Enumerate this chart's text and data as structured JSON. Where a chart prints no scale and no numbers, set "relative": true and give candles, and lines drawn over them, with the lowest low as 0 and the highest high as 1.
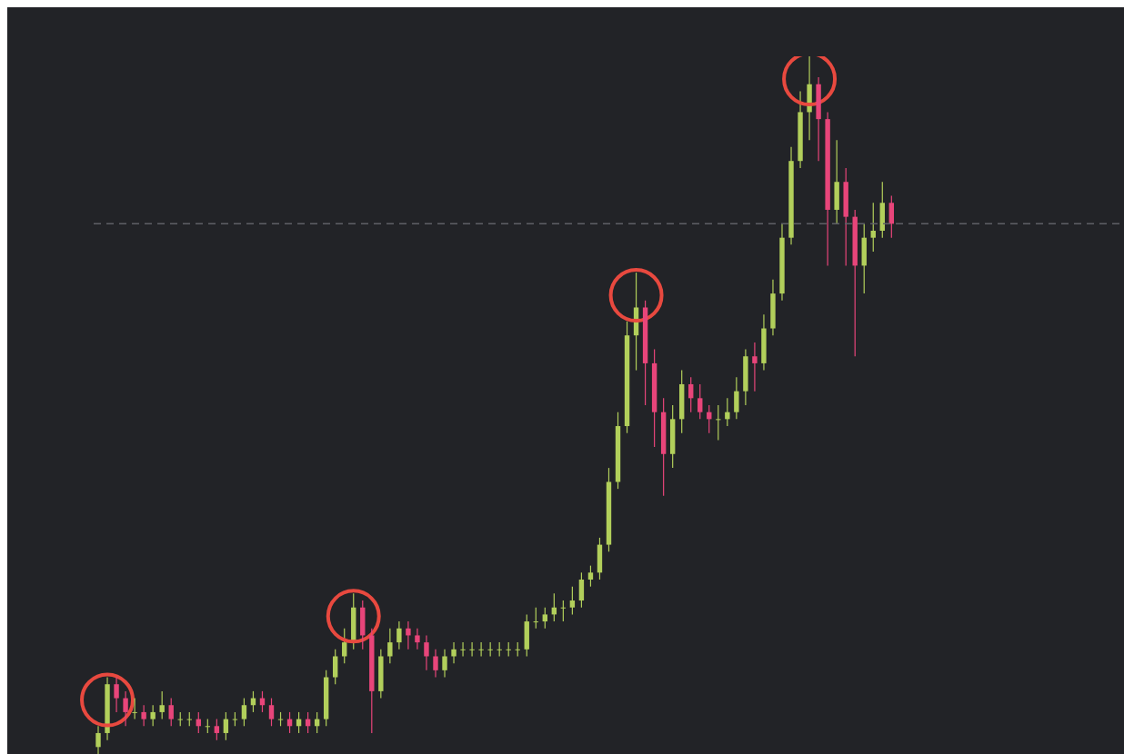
{
  "chart_data": {
    "type": "candlestick",
    "relative": true,
    "categories": [
      null,
      null,
      null,
      null,
      null,
      null,
      null,
      null,
      null,
      null,
      null,
      null,
      null,
      null,
      null,
      null,
      null,
      null,
      null,
      null,
      null,
      null,
      null,
      null,
      null,
      null,
      null,
      null,
      null,
      null,
      null,
      null,
      null,
      null,
      null,
      null,
      null,
      null,
      null,
      null,
      null,
      null,
      null,
      null,
      null,
      null,
      null,
      null,
      null,
      null,
      null,
      null,
      null,
      null,
      null,
      null,
      null,
      null,
      null,
      null,
      null,
      null,
      null,
      null,
      null,
      null,
      null,
      null,
      null,
      null,
      null,
      null,
      null,
      null,
      null,
      null,
      null,
      null,
      null,
      null,
      null,
      null,
      null,
      null,
      null,
      null,
      null,
      null,
      null,
      null,
      null,
      null,
      null,
      null,
      null,
      null,
      null,
      null,
      null,
      null,
      null,
      null,
      null,
      null,
      null,
      null,
      null,
      null,
      null,
      null,
      null,
      null,
      null
    ],
    "colors": [
      "#b2cf5b",
      "#b2cf5b",
      "#e8457a",
      "#e8457a",
      "#b2cf5b",
      "#e8457a",
      "#b2cf5b",
      "#b2cf5b",
      "#e8457a",
      "#b2cf5b",
      "#b2cf5b",
      "#e8457a",
      "#b2cf5b",
      "#e8457a",
      "#b2cf5b",
      "#b2cf5b",
      "#b2cf5b",
      "#b2cf5b",
      "#e8457a",
      "#e8457a",
      "#b2cf5b",
      "#e8457a",
      "#b2cf5b",
      "#e8457a",
      "#b2cf5b",
      "#b2cf5b",
      "#b2cf5b",
      "#b2cf5b",
      "#b2cf5b",
      "#e8457a",
      "#e8457a",
      "#b2cf5b",
      "#b2cf5b",
      "#b2cf5b",
      "#e8457a",
      "#e8457a",
      "#e8457a",
      "#e8457a",
      "#b2cf5b",
      "#b2cf5b",
      "#b2cf5b",
      "#b2cf5b",
      "#b2cf5b",
      "#b2cf5b",
      "#b2cf5b",
      "#b2cf5b",
      "#b2cf5b",
      "#b2cf5b",
      "#b2cf5b",
      "#b2cf5b",
      "#b2cf5b",
      "#b2cf5b",
      "#b2cf5b",
      "#b2cf5b",
      "#b2cf5b",
      "#b2cf5b",
      "#b2cf5b",
      "#b2cf5b",
      "#b2cf5b",
      "#b2cf5b",
      "#e8457a",
      "#e8457a",
      "#e8457a",
      "#b2cf5b",
      "#b2cf5b",
      "#e8457a",
      "#e8457a",
      "#e8457a",
      "#b2cf5b",
      "#b2cf5b",
      "#b2cf5b",
      "#b2cf5b",
      "#e8457a",
      "#b2cf5b",
      "#b2cf5b",
      "#b2cf5b",
      "#b2cf5b",
      "#b2cf5b",
      "#b2cf5b",
      "#e8457a",
      "#e8457a",
      "#b2cf5b",
      "#e8457a",
      "#e8457a",
      "#b2cf5b",
      "#b2cf5b",
      "#b2cf5b",
      "#e8457a",
      null,
      null,
      null,
      null,
      null,
      null,
      null,
      null,
      null,
      null,
      null,
      null,
      null,
      null,
      null,
      null,
      null,
      null,
      null,
      null,
      null,
      null,
      null,
      null,
      null
    ],
    "ohlc": [
      [
        0.01,
        0.04,
        0,
        0.03
      ],
      [
        0.03,
        0.11,
        0.02,
        0.1
      ],
      [
        0.1,
        0.11,
        0.06,
        0.08
      ],
      [
        0.08,
        0.09,
        0.04,
        0.06
      ],
      [
        0.06,
        0.08,
        0.05,
        0.06
      ],
      [
        0.06,
        0.07,
        0.04,
        0.05
      ],
      [
        0.05,
        0.07,
        0.04,
        0.06
      ],
      [
        0.06,
        0.09,
        0.05,
        0.07
      ],
      [
        0.07,
        0.08,
        0.04,
        0.05
      ],
      [
        0.05,
        0.06,
        0.04,
        0.05
      ],
      [
        0.05,
        0.06,
        0.04,
        0.05
      ],
      [
        0.05,
        0.06,
        0.03,
        0.04
      ],
      [
        0.04,
        0.05,
        0.03,
        0.04
      ],
      [
        0.04,
        0.05,
        0.02,
        0.03
      ],
      [
        0.03,
        0.06,
        0.02,
        0.05
      ],
      [
        0.05,
        0.06,
        0.04,
        0.05
      ],
      [
        0.05,
        0.08,
        0.04,
        0.07
      ],
      [
        0.07,
        0.09,
        0.06,
        0.08
      ],
      [
        0.08,
        0.09,
        0.06,
        0.07
      ],
      [
        0.07,
        0.08,
        0.04,
        0.05
      ],
      [
        0.05,
        0.06,
        0.04,
        0.05
      ],
      [
        0.05,
        0.06,
        0.03,
        0.04
      ],
      [
        0.04,
        0.06,
        0.03,
        0.05
      ],
      [
        0.05,
        0.06,
        0.03,
        0.04
      ],
      [
        0.04,
        0.06,
        0.03,
        0.05
      ],
      [
        0.05,
        0.12,
        0.04,
        0.11
      ],
      [
        0.11,
        0.15,
        0.1,
        0.14
      ],
      [
        0.14,
        0.18,
        0.13,
        0.16
      ],
      [
        0.16,
        0.23,
        0.15,
        0.21
      ],
      [
        0.21,
        0.22,
        0.15,
        0.17
      ],
      [
        0.17,
        0.18,
        0.03,
        0.09
      ],
      [
        0.09,
        0.15,
        0.08,
        0.14
      ],
      [
        0.14,
        0.18,
        0.13,
        0.16
      ],
      [
        0.16,
        0.19,
        0.15,
        0.18
      ],
      [
        0.18,
        0.19,
        0.15,
        0.17
      ],
      [
        0.17,
        0.18,
        0.15,
        0.16
      ],
      [
        0.16,
        0.17,
        0.12,
        0.14
      ],
      [
        0.14,
        0.15,
        0.11,
        0.12
      ],
      [
        0.12,
        0.15,
        0.11,
        0.14
      ],
      [
        0.14,
        0.16,
        0.13,
        0.15
      ],
      [
        0.15,
        0.16,
        0.14,
        0.15
      ],
      [
        0.15,
        0.16,
        0.14,
        0.15
      ],
      [
        0.15,
        0.16,
        0.14,
        0.15
      ],
      [
        0.15,
        0.16,
        0.14,
        0.15
      ],
      [
        0.15,
        0.16,
        0.14,
        0.15
      ],
      [
        0.15,
        0.16,
        0.14,
        0.15
      ],
      [
        0.15,
        0.16,
        0.14,
        0.15
      ],
      [
        0.15,
        0.2,
        0.14,
        0.19
      ],
      [
        0.19,
        0.21,
        0.18,
        0.19
      ],
      [
        0.19,
        0.21,
        0.18,
        0.2
      ],
      [
        0.2,
        0.23,
        0.19,
        0.21
      ],
      [
        0.21,
        0.22,
        0.19,
        0.21
      ],
      [
        0.21,
        0.24,
        0.2,
        0.22
      ],
      [
        0.22,
        0.26,
        0.21,
        0.25
      ],
      [
        0.25,
        0.27,
        0.24,
        0.26
      ],
      [
        0.26,
        0.31,
        0.25,
        0.3
      ],
      [
        0.3,
        0.41,
        0.29,
        0.39
      ],
      [
        0.39,
        0.49,
        0.38,
        0.47
      ],
      [
        0.47,
        0.62,
        0.46,
        0.6
      ],
      [
        0.6,
        0.69,
        0.55,
        0.64
      ],
      [
        0.64,
        0.65,
        0.5,
        0.56
      ],
      [
        0.56,
        0.58,
        0.44,
        0.49
      ],
      [
        0.49,
        0.51,
        0.37,
        0.43
      ],
      [
        0.43,
        0.5,
        0.41,
        0.48
      ],
      [
        0.48,
        0.55,
        0.46,
        0.53
      ],
      [
        0.53,
        0.54,
        0.49,
        0.51
      ],
      [
        0.51,
        0.53,
        0.48,
        0.49
      ],
      [
        0.49,
        0.5,
        0.46,
        0.48
      ],
      [
        0.48,
        0.5,
        0.45,
        0.48
      ],
      [
        0.48,
        0.51,
        0.47,
        0.49
      ],
      [
        0.49,
        0.54,
        0.48,
        0.52
      ],
      [
        0.52,
        0.58,
        0.5,
        0.57
      ],
      [
        0.57,
        0.59,
        0.52,
        0.56
      ],
      [
        0.56,
        0.63,
        0.55,
        0.61
      ],
      [
        0.61,
        0.68,
        0.6,
        0.66
      ],
      [
        0.66,
        0.76,
        0.65,
        0.74
      ],
      [
        0.74,
        0.87,
        0.73,
        0.85
      ],
      [
        0.85,
        0.95,
        0.84,
        0.92
      ],
      [
        0.92,
        1,
        0.88,
        0.96
      ],
      [
        0.96,
        0.97,
        0.85,
        0.91
      ],
      [
        0.91,
        0.92,
        0.7,
        0.78
      ],
      [
        0.78,
        0.88,
        0.76,
        0.82
      ],
      [
        0.82,
        0.84,
        0.7,
        0.77
      ],
      [
        0.77,
        0.78,
        0.57,
        0.7
      ],
      [
        0.7,
        0.76,
        0.66,
        0.74
      ],
      [
        0.74,
        0.79,
        0.72,
        0.75
      ],
      [
        0.75,
        0.82,
        0.74,
        0.79
      ],
      [
        0.79,
        0.8,
        0.74,
        0.76
      ],
      null,
      null,
      null,
      null,
      null,
      null,
      null,
      null,
      null,
      null,
      null,
      null,
      null,
      null,
      null,
      null,
      null,
      null,
      null,
      null,
      null,
      null,
      null,
      null,
      null
    ],
    "ref_lines": [
      {
        "axis": "y",
        "value": 0.76,
        "color": "#5f6066",
        "line_style": "dashed"
      }
    ]
  }
}
